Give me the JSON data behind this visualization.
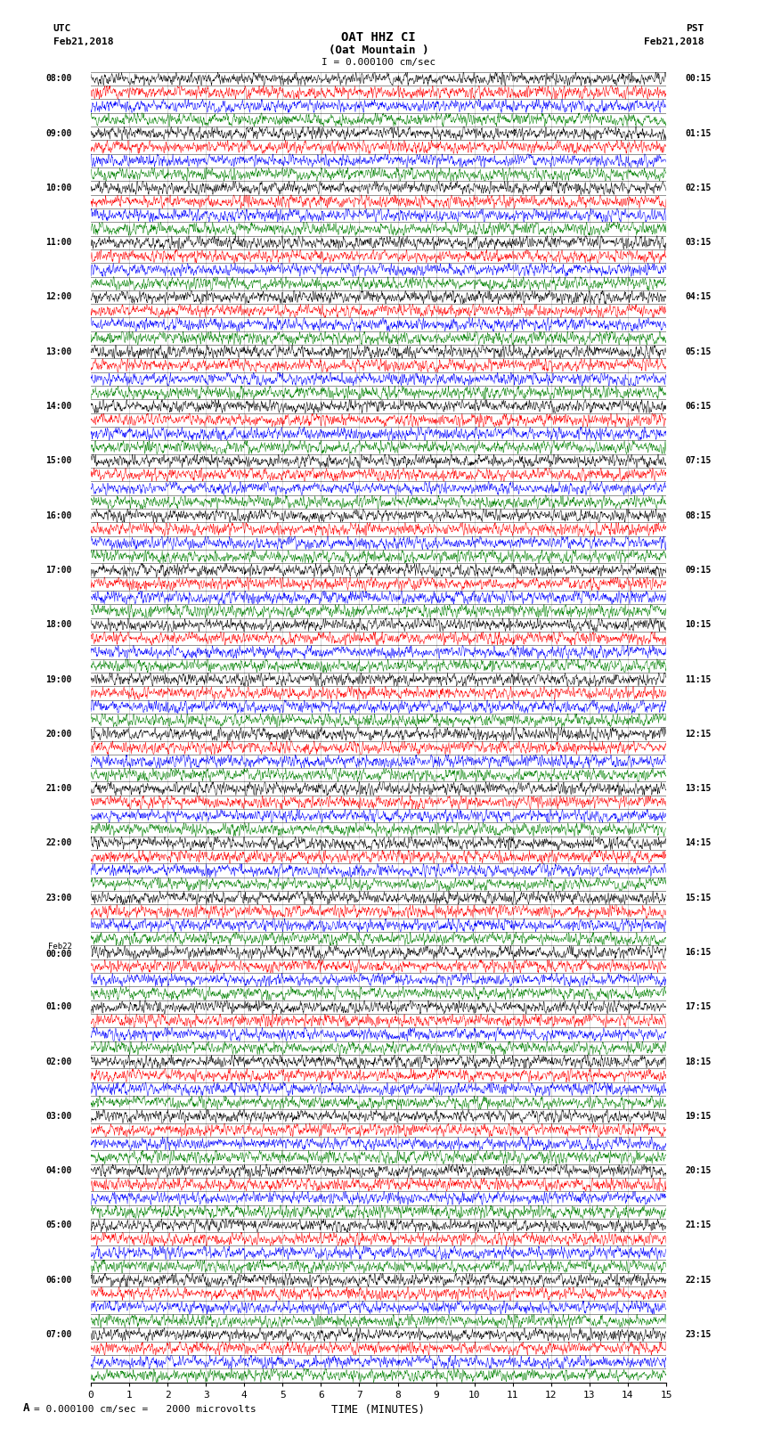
{
  "title_line1": "OAT HHZ CI",
  "title_line2": "(Oat Mountain )",
  "scale_text": "I = 0.000100 cm/sec",
  "left_header_line1": "UTC",
  "left_header_line2": "Feb21,2018",
  "right_header_line1": "PST",
  "right_header_line2": "Feb21,2018",
  "xlabel": "TIME (MINUTES)",
  "bottom_note": "= 0.000100 cm/sec =   2000 microvolts",
  "x_min": 0,
  "x_max": 15,
  "x_ticks": [
    0,
    1,
    2,
    3,
    4,
    5,
    6,
    7,
    8,
    9,
    10,
    11,
    12,
    13,
    14,
    15
  ],
  "row_colors": [
    "black",
    "red",
    "blue",
    "green"
  ],
  "fig_width": 8.5,
  "fig_height": 16.13,
  "dpi": 100,
  "num_rows": 96,
  "trace_amplitude": 0.48,
  "noise_seed": 42,
  "utc_labels": [
    "08:00",
    "09:00",
    "10:00",
    "11:00",
    "12:00",
    "13:00",
    "14:00",
    "15:00",
    "16:00",
    "17:00",
    "18:00",
    "19:00",
    "20:00",
    "21:00",
    "22:00",
    "23:00",
    "Feb22\n00:00",
    "01:00",
    "02:00",
    "03:00",
    "04:00",
    "05:00",
    "06:00",
    "07:00"
  ],
  "pst_labels": [
    "00:15",
    "01:15",
    "02:15",
    "03:15",
    "04:15",
    "05:15",
    "06:15",
    "07:15",
    "08:15",
    "09:15",
    "10:15",
    "11:15",
    "12:15",
    "13:15",
    "14:15",
    "15:15",
    "16:15",
    "17:15",
    "18:15",
    "19:15",
    "20:15",
    "21:15",
    "22:15",
    "23:15"
  ],
  "background_color": "white",
  "grid_color": "black",
  "grid_linewidth": 0.6,
  "trace_linewidth": 0.35,
  "n_points": 2000
}
